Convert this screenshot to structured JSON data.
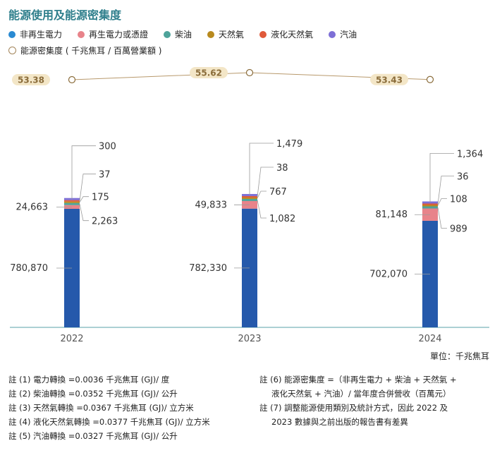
{
  "title": "能源使用及能源密集度",
  "legend": [
    {
      "label": "非再生電力",
      "color": "#2a8ad2",
      "kind": "dot"
    },
    {
      "label": "再生電力或憑證",
      "color": "#e8838a",
      "kind": "dot"
    },
    {
      "label": "柴油",
      "color": "#4ea39a",
      "kind": "dot"
    },
    {
      "label": "天然氣",
      "color": "#b88a1e",
      "kind": "dot"
    },
    {
      "label": "液化天然氣",
      "color": "#e0593a",
      "kind": "dot"
    },
    {
      "label": "汽油",
      "color": "#7d6fd6",
      "kind": "dot"
    }
  ],
  "legend_intensity": "能源密集度 ( 千兆焦耳 / 百萬營業額 )",
  "unit_label": "單位：千兆焦耳",
  "chart_data": {
    "type": "bar",
    "stacked": true,
    "categories": [
      "2022",
      "2023",
      "2024"
    ],
    "series": [
      {
        "name": "非再生電力",
        "color": "#2559ab",
        "values": [
          780870,
          782330,
          702070
        ],
        "labels": [
          "780,870",
          "782,330",
          "702,070"
        ]
      },
      {
        "name": "再生電力或憑證",
        "color": "#e8838a",
        "values": [
          24663,
          49833,
          81148
        ],
        "labels": [
          "24,663",
          "49,833",
          "81,148"
        ]
      },
      {
        "name": "柴油",
        "color": "#4ea39a",
        "values": [
          2263,
          1082,
          989
        ],
        "labels": [
          "2,263",
          "1,082",
          "989"
        ]
      },
      {
        "name": "天然氣",
        "color": "#b88a1e",
        "values": [
          175,
          767,
          108
        ],
        "labels": [
          "175",
          "767",
          "108"
        ]
      },
      {
        "name": "液化天然氣",
        "color": "#e0593a",
        "values": [
          37,
          38,
          36
        ],
        "labels": [
          "37",
          "38",
          "36"
        ]
      },
      {
        "name": "汽油",
        "color": "#7d6fd6",
        "values": [
          300,
          1479,
          1364
        ],
        "labels": [
          "300",
          "1,479",
          "1,364"
        ]
      }
    ],
    "intensity": {
      "name": "能源密集度 ( 千兆焦耳 / 百萬營業額 )",
      "values": [
        53.38,
        55.62,
        53.43
      ],
      "labels": [
        "53.38",
        "55.62",
        "53.43"
      ]
    }
  },
  "notes_left": [
    "註 (1) 電力轉換 =0.0036 千兆焦耳 (GJ)/ 度",
    "註 (2) 柴油轉換 =0.0352 千兆焦耳 (GJ)/ 公升",
    "註 (3) 天然氣轉換 =0.0367 千兆焦耳 (GJ)/ 立方米",
    "註 (4) 液化天然氣轉換 =0.0377 千兆焦耳 (GJ)/ 立方米",
    "註 (5) 汽油轉換 =0.0327 千兆焦耳 (GJ)/ 公升"
  ],
  "notes_right": [
    "註 (6) 能源密集度 =（非再生電力 + 柴油 + 天然氣 +",
    "液化天然氣 + 汽油）/ 當年度合併營收（百萬元）",
    "註 (7) 調整能源使用類別及統計方式，因此 2022 及",
    "2023 數據與之前出版的報告書有差異"
  ]
}
